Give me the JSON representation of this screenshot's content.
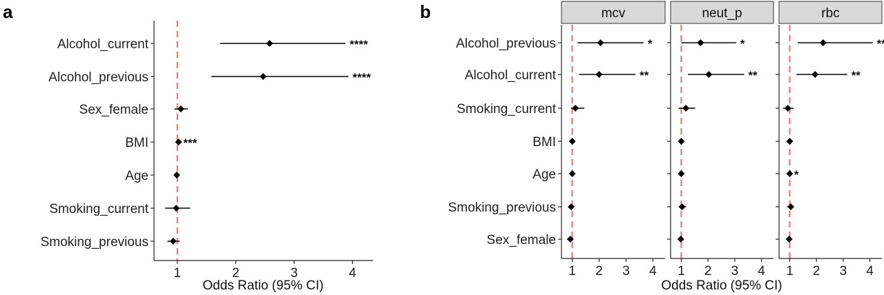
{
  "chart_data": [
    {
      "panel_label": "a",
      "type": "forest",
      "xlabel": "Odds Ratio (95% CI)",
      "xlim": [
        0.6,
        4.35
      ],
      "xticks": [
        1,
        2,
        3,
        4
      ],
      "reference_line": 1,
      "reference_color": "#f08080",
      "categories": [
        "Alcohol_current",
        "Alcohol_previous",
        "Sex_female",
        "BMI",
        "Age",
        "Smoking_current",
        "Smoking_previous"
      ],
      "estimates": [
        2.58,
        2.47,
        1.06,
        1.02,
        0.99,
        0.98,
        0.93
      ],
      "ci_low": [
        1.73,
        1.58,
        0.95,
        1.0,
        0.98,
        0.79,
        0.83
      ],
      "ci_high": [
        3.88,
        3.93,
        1.18,
        1.03,
        1.0,
        1.22,
        1.04
      ],
      "significance": [
        "****",
        "****",
        "",
        "***",
        "",
        "",
        ""
      ]
    },
    {
      "panel_label": "b",
      "type": "forest",
      "xlabel": "Odds Ratio (95% CI)",
      "xlim": [
        0.6,
        4.45
      ],
      "xticks": [
        1,
        2,
        3,
        4
      ],
      "reference_line": 1,
      "reference_color": "#f08080",
      "categories": [
        "Alcohol_previous",
        "Alcohol_current",
        "Smoking_current",
        "BMI",
        "Age",
        "Smoking_previous",
        "Sex_female"
      ],
      "facets": [
        {
          "name": "mcv",
          "estimates": [
            2.05,
            2.0,
            1.12,
            1.0,
            1.0,
            0.96,
            0.93
          ],
          "ci_low": [
            1.2,
            1.25,
            0.95,
            0.98,
            0.99,
            0.88,
            0.85
          ],
          "ci_high": [
            3.65,
            3.35,
            1.45,
            1.02,
            1.01,
            1.08,
            1.02
          ],
          "significance": [
            "*",
            "**",
            "",
            "",
            "",
            "",
            ""
          ]
        },
        {
          "name": "neut_p",
          "estimates": [
            1.72,
            2.03,
            1.17,
            1.0,
            1.0,
            1.03,
            0.98
          ],
          "ci_low": [
            1.0,
            1.25,
            0.9,
            0.98,
            0.99,
            0.9,
            0.88
          ],
          "ci_high": [
            3.05,
            3.35,
            1.52,
            1.02,
            1.01,
            1.18,
            1.08
          ],
          "significance": [
            "*",
            "**",
            "",
            "",
            "",
            "",
            ""
          ]
        },
        {
          "name": "rbc",
          "estimates": [
            2.25,
            1.95,
            0.93,
            1.0,
            1.0,
            1.04,
            0.98
          ],
          "ci_low": [
            1.3,
            1.25,
            0.75,
            0.98,
            0.99,
            0.9,
            0.9
          ],
          "ci_high": [
            4.1,
            3.15,
            1.15,
            1.03,
            1.01,
            1.15,
            1.05
          ],
          "significance": [
            "**",
            "**",
            "",
            "",
            "*",
            "",
            ""
          ]
        }
      ]
    }
  ]
}
